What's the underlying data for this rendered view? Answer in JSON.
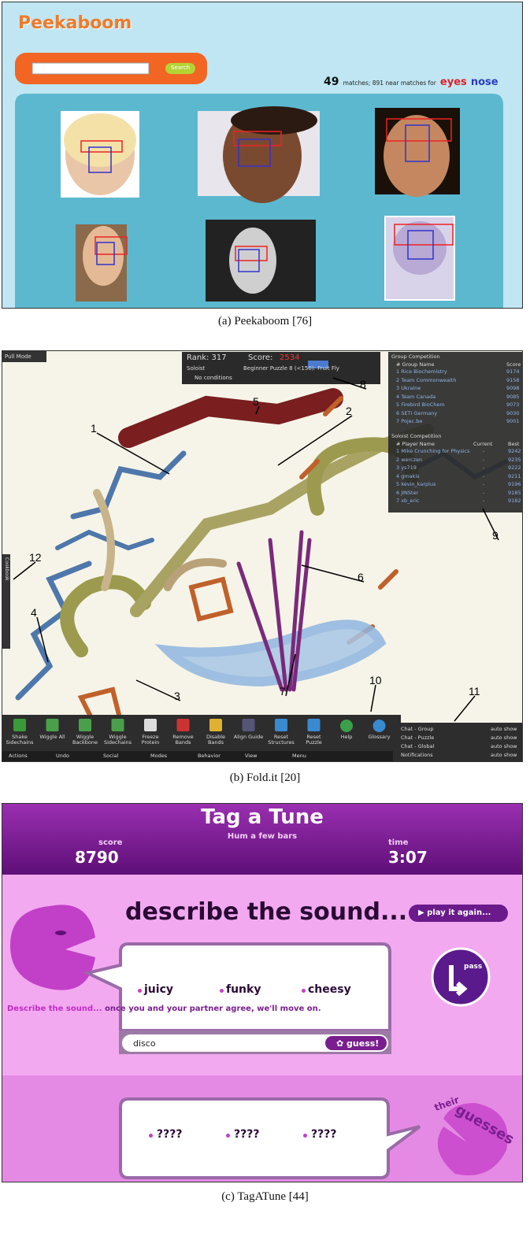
{
  "captions": [
    "(a) Peekaboom [76]",
    "(b) Fold.it [20]",
    "(c) TagATune [44]"
  ],
  "peekaboom": {
    "logo": "Peekaboom",
    "search_button": "Search",
    "matches_count": "49",
    "matches_text": "matches; 891 near matches for",
    "query_words": [
      "eyes",
      "nose"
    ]
  },
  "foldit": {
    "mode": "Pull Mode",
    "rank": "Rank: 317",
    "score_label": "Score:",
    "score": "2534",
    "player_type": "Soloist",
    "puzzle": "Beginner Puzzle 8 (<150): Fruit Fly",
    "conditions": "No conditions",
    "group_competition": {
      "title": "Group Competition",
      "columns": [
        "# Group Name",
        "Score"
      ],
      "rows": [
        [
          "1 Rice Biochemistry",
          "9174"
        ],
        [
          "2 Team Commonwealth",
          "9158"
        ],
        [
          "3 Ukraine",
          "9098"
        ],
        [
          "4 Team Canada",
          "9085"
        ],
        [
          "5 Firebird BioChem",
          "9073"
        ],
        [
          "6 SETI Germany",
          "9030"
        ],
        [
          "7 Pojec.be",
          "9001"
        ]
      ]
    },
    "soloist_competition": {
      "title": "Soloist Competition",
      "columns": [
        "# Player Name",
        "Current",
        "Best"
      ],
      "rows": [
        [
          "1 Mike Crunching for Physics",
          "-",
          "9242"
        ],
        [
          "2 werczen",
          "-",
          "9235"
        ],
        [
          "3 ys719",
          "-",
          "9222"
        ],
        [
          "4 gmakis",
          "-",
          "9211"
        ],
        [
          "5 kevin_karplus",
          "-",
          "9196"
        ],
        [
          "6 JINSter",
          "-",
          "9185"
        ],
        [
          "7 xb_eric",
          "-",
          "9182"
        ]
      ]
    },
    "cookbook": "Cookbook",
    "callouts": [
      "1",
      "2",
      "3",
      "4",
      "5",
      "6",
      "7",
      "8",
      "9",
      "10",
      "11",
      "12"
    ],
    "tools": [
      "Shake Sidechains",
      "Wiggle All",
      "Wiggle Backbone",
      "Wiggle Sidechains",
      "Freeze Protein",
      "Remove Bands",
      "Disable Bands",
      "Align Guide",
      "Reset Structures",
      "Reset Puzzle",
      "Help",
      "Glossary"
    ],
    "menu": [
      "Actions",
      "Undo",
      "Social",
      "Modes",
      "Behavior",
      "View",
      "Menu"
    ],
    "chat": [
      {
        "label": "Chat - Group",
        "option": "auto show"
      },
      {
        "label": "Chat - Puzzle",
        "option": "auto show"
      },
      {
        "label": "Chat - Global",
        "option": "auto show"
      },
      {
        "label": "Notifications",
        "option": "auto show"
      }
    ]
  },
  "tagatune": {
    "title": "Tag a Tune",
    "subtitle": "Hum a few bars",
    "score_label": "score",
    "score": "8790",
    "time_label": "time",
    "time": "3:07",
    "prompt": "describe the sound...",
    "play_again": "play it again...",
    "pass": "pass",
    "instructions_lead": "Describe the sound...",
    "instructions_rest": "once you and your partner agree, we'll move on.",
    "tags": [
      "juicy",
      "funky",
      "cheesy"
    ],
    "input": "disco",
    "guess_button": "guess!",
    "guesses": [
      "????",
      "????",
      "????"
    ],
    "their": "their",
    "guesses_label": "guesses"
  }
}
